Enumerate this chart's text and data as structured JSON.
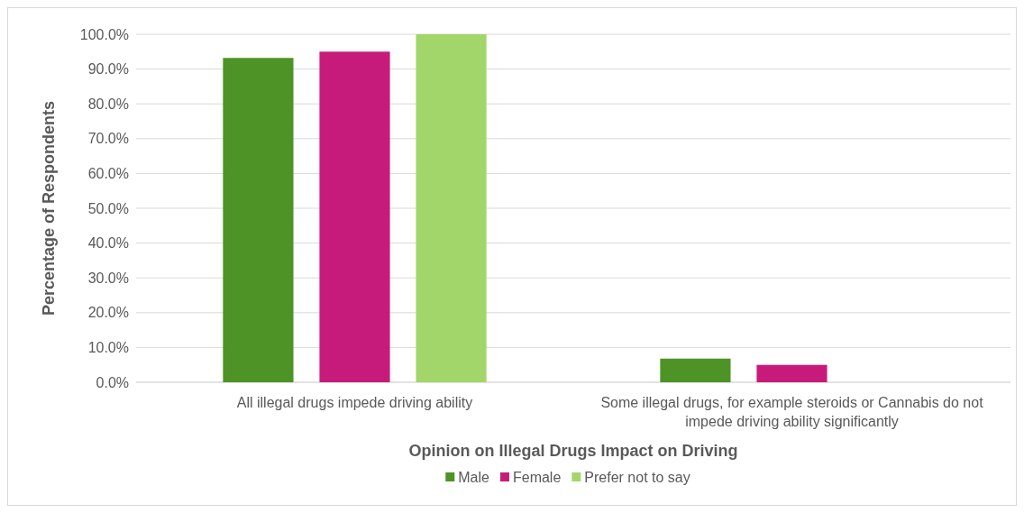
{
  "chart_data": {
    "type": "bar",
    "xlabel": "Opinion on Illegal Drugs Impact on Driving",
    "ylabel": "Percentage of Respondents",
    "categories": [
      "All illegal drugs impede driving ability",
      "Some illegal drugs, for example steroids or Cannabis do not impede driving ability significantly"
    ],
    "series": [
      {
        "name": "Male",
        "color": "#4e9325",
        "values": [
          93.2,
          6.8
        ]
      },
      {
        "name": "Female",
        "color": "#c71b7b",
        "values": [
          95.0,
          5.0
        ]
      },
      {
        "name": "Prefer not to say",
        "color": "#a2d66b",
        "values": [
          100,
          0
        ]
      }
    ],
    "ylim": [
      0,
      100
    ],
    "yticks": [
      {
        "value": 0,
        "label": "0.0%"
      },
      {
        "value": 10,
        "label": "10.0%"
      },
      {
        "value": 20,
        "label": "20.0%"
      },
      {
        "value": 30,
        "label": "30.0%"
      },
      {
        "value": 40,
        "label": "40.0%"
      },
      {
        "value": 50,
        "label": "50.0%"
      },
      {
        "value": 60,
        "label": "60.0%"
      },
      {
        "value": 70,
        "label": "70.0%"
      },
      {
        "value": 80,
        "label": "80.0%"
      },
      {
        "value": 90,
        "label": "90.0%"
      },
      {
        "value": 100,
        "label": "100.0%"
      }
    ],
    "grid": "y",
    "legend": "bottom"
  }
}
